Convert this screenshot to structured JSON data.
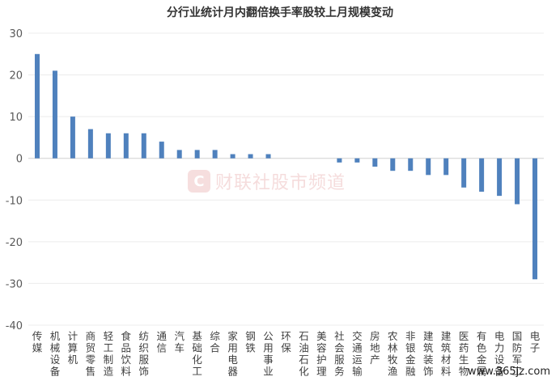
{
  "chart_data": {
    "type": "bar",
    "title": "分行业统计月内翻倍换手率股较上月规模变动",
    "xlabel": "",
    "ylabel": "",
    "ylim": [
      -40,
      30
    ],
    "yticks": [
      30,
      20,
      10,
      0,
      -10,
      -20,
      -30,
      -40
    ],
    "grid": true,
    "bar_color": "#4f81bd",
    "categories": [
      "传媒",
      "机械设备",
      "计算机",
      "商贸零售",
      "轻工制造",
      "食品饮料",
      "纺织服饰",
      "通信",
      "汽车",
      "基础化工",
      "综合",
      "家用电器",
      "钢铁",
      "公用事业",
      "环保",
      "石油石化",
      "美容护理",
      "社会服务",
      "交通运输",
      "房地产",
      "农林牧渔",
      "非银金融",
      "建筑装饰",
      "建筑材料",
      "医药生物",
      "有色金属",
      "电力设备",
      "国防军工",
      "电子"
    ],
    "values": [
      25,
      21,
      10,
      7,
      6,
      6,
      6,
      4,
      2,
      2,
      2,
      1,
      1,
      1,
      0,
      0,
      0,
      -1,
      -1,
      -2,
      -3,
      -3,
      -4,
      -4,
      -7,
      -8,
      -9,
      -11,
      -29
    ]
  },
  "watermark": {
    "icon": "C",
    "text": "财联社股市频道"
  },
  "site_mark": "www.365jz.com"
}
